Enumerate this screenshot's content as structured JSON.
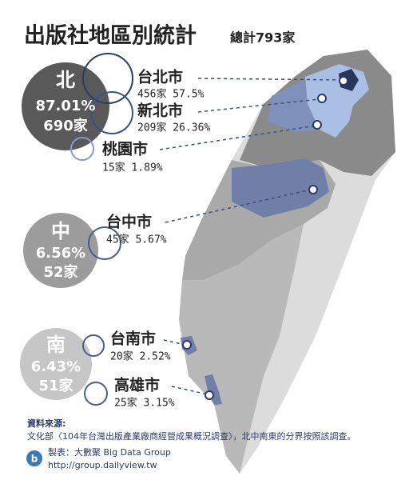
{
  "header": {
    "title": "出版社地區別統計",
    "subtitle": "總計793家"
  },
  "regions": [
    {
      "name": "北",
      "percent": "87.01%",
      "count": "690家"
    },
    {
      "name": "中",
      "percent": "6.56%",
      "count": "52家"
    },
    {
      "name": "南",
      "percent": "6.43%",
      "count": "51家"
    }
  ],
  "cities": [
    {
      "name": "台北市",
      "stat": "456家 57.5%"
    },
    {
      "name": "新北市",
      "stat": "209家 26.36%"
    },
    {
      "name": "桃園市",
      "stat": "15家 1.89%"
    },
    {
      "name": "台中市",
      "stat": "45家 5.67%"
    },
    {
      "name": "台南市",
      "stat": "20家 2.52%"
    },
    {
      "name": "高雄市",
      "stat": "25家 3.15%"
    }
  ],
  "source": {
    "label": "資料來源:",
    "text": "文化部〈104年台灣出版產業廠商經營成果概況調查〉，北中南東的分界按照該調查。"
  },
  "credits": {
    "maker": "製表：大數聚 Big Data Group",
    "url": "http://group.dailyview.tw"
  }
}
